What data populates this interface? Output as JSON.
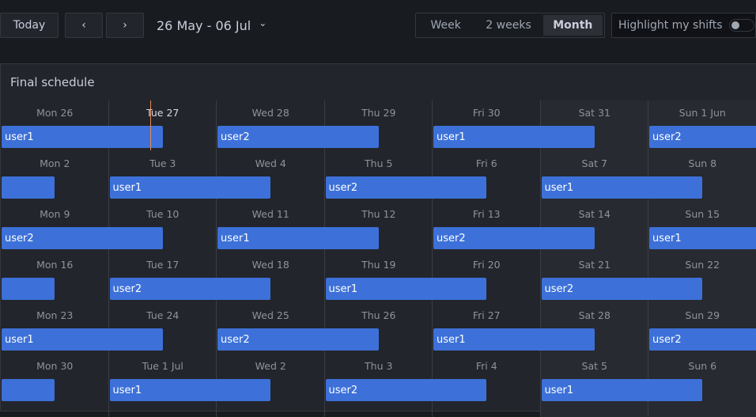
{
  "toolbar": {
    "today": "Today",
    "prev": "‹",
    "next": "›",
    "range": "26 May - 06 Jul",
    "range_chevron": "⌄",
    "views": [
      {
        "label": "Week",
        "active": false
      },
      {
        "label": "2 weeks",
        "active": false
      },
      {
        "label": "Month",
        "active": true
      }
    ],
    "highlight_label": "Highlight my shifts",
    "highlight_on": false
  },
  "panel": {
    "title": "Final schedule"
  },
  "colors": {
    "shift": "#3d71d9",
    "now_line": "#e28a5c"
  },
  "weeks": [
    {
      "days": [
        "Mon 26",
        "Tue 27",
        "Wed 28",
        "Thu 29",
        "Fri 30",
        "Sat 31",
        "Sun 1 Jun"
      ],
      "today_index": 1,
      "shifts": [
        {
          "user": "user1",
          "start_day": 0,
          "days": 1.5
        },
        {
          "user": "user2",
          "start_day": 2,
          "days": 1.5
        },
        {
          "user": "user1",
          "start_day": 4,
          "days": 1.5
        },
        {
          "user": "user2",
          "start_day": 6,
          "days": 1.5
        }
      ]
    },
    {
      "days": [
        "Mon 2",
        "Tue 3",
        "Wed 4",
        "Thu 5",
        "Fri 6",
        "Sat 7",
        "Sun 8"
      ],
      "shifts": [
        {
          "user": "",
          "start_day": 0,
          "days": 0.5
        },
        {
          "user": "user1",
          "start_day": 1,
          "days": 1.5
        },
        {
          "user": "user2",
          "start_day": 3,
          "days": 1.5
        },
        {
          "user": "user1",
          "start_day": 5,
          "days": 1.5
        }
      ]
    },
    {
      "days": [
        "Mon 9",
        "Tue 10",
        "Wed 11",
        "Thu 12",
        "Fri 13",
        "Sat 14",
        "Sun 15"
      ],
      "shifts": [
        {
          "user": "user2",
          "start_day": 0,
          "days": 1.5
        },
        {
          "user": "user1",
          "start_day": 2,
          "days": 1.5
        },
        {
          "user": "user2",
          "start_day": 4,
          "days": 1.5
        },
        {
          "user": "user1",
          "start_day": 6,
          "days": 1.5
        }
      ]
    },
    {
      "days": [
        "Mon 16",
        "Tue 17",
        "Wed 18",
        "Thu 19",
        "Fri 20",
        "Sat 21",
        "Sun 22"
      ],
      "shifts": [
        {
          "user": "",
          "start_day": 0,
          "days": 0.5
        },
        {
          "user": "user2",
          "start_day": 1,
          "days": 1.5
        },
        {
          "user": "user1",
          "start_day": 3,
          "days": 1.5
        },
        {
          "user": "user2",
          "start_day": 5,
          "days": 1.5
        }
      ]
    },
    {
      "days": [
        "Mon 23",
        "Tue 24",
        "Wed 25",
        "Thu 26",
        "Fri 27",
        "Sat 28",
        "Sun 29"
      ],
      "shifts": [
        {
          "user": "user1",
          "start_day": 0,
          "days": 1.5
        },
        {
          "user": "user2",
          "start_day": 2,
          "days": 1.5
        },
        {
          "user": "user1",
          "start_day": 4,
          "days": 1.5
        },
        {
          "user": "user2",
          "start_day": 6,
          "days": 1.5
        }
      ]
    },
    {
      "days": [
        "Mon 30",
        "Tue 1 Jul",
        "Wed 2",
        "Thu 3",
        "Fri 4",
        "Sat 5",
        "Sun 6"
      ],
      "shifts": [
        {
          "user": "",
          "start_day": 0,
          "days": 0.5
        },
        {
          "user": "user1",
          "start_day": 1,
          "days": 1.5
        },
        {
          "user": "user2",
          "start_day": 3,
          "days": 1.5
        },
        {
          "user": "user1",
          "start_day": 5,
          "days": 1.5
        }
      ]
    }
  ]
}
